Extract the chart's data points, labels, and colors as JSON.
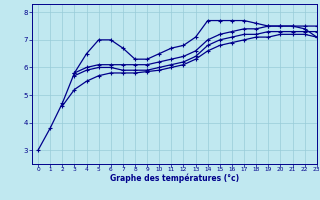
{
  "background_color": "#c0e8f0",
  "grid_color": "#98ccd8",
  "line_color": "#00008b",
  "xlabel": "Graphe des températures (°c)",
  "xlabel_color": "#00008b",
  "xlim": [
    -0.5,
    23
  ],
  "ylim": [
    2.5,
    8.3
  ],
  "yticks": [
    3,
    4,
    5,
    6,
    7,
    8
  ],
  "xticks": [
    0,
    1,
    2,
    3,
    4,
    5,
    6,
    7,
    8,
    9,
    10,
    11,
    12,
    13,
    14,
    15,
    16,
    17,
    18,
    19,
    20,
    21,
    22,
    23
  ],
  "series": [
    {
      "x": [
        0,
        1,
        2,
        3,
        4,
        5,
        6,
        7,
        8,
        9,
        10,
        11,
        12,
        13,
        14,
        15,
        16,
        17,
        18,
        19,
        20,
        21,
        22,
        23
      ],
      "y": [
        3.0,
        3.8,
        4.7,
        5.8,
        6.5,
        7.0,
        7.0,
        6.7,
        6.3,
        6.3,
        6.5,
        6.7,
        6.8,
        7.1,
        7.7,
        7.7,
        7.7,
        7.7,
        7.6,
        7.5,
        7.5,
        7.5,
        7.4,
        7.1
      ]
    },
    {
      "x": [
        3,
        4,
        5,
        6,
        7,
        8,
        9,
        10,
        11,
        12,
        13,
        14,
        15,
        16,
        17,
        18,
        19,
        20,
        21,
        22,
        23
      ],
      "y": [
        5.8,
        6.0,
        6.1,
        6.1,
        6.1,
        6.1,
        6.1,
        6.2,
        6.3,
        6.4,
        6.6,
        7.0,
        7.2,
        7.3,
        7.4,
        7.4,
        7.5,
        7.5,
        7.5,
        7.5,
        7.5
      ]
    },
    {
      "x": [
        3,
        4,
        5,
        6,
        7,
        8,
        9,
        10,
        11,
        12,
        13,
        14,
        15,
        16,
        17,
        18,
        19,
        20,
        21,
        22,
        23
      ],
      "y": [
        5.7,
        5.9,
        6.0,
        6.0,
        5.9,
        5.9,
        5.9,
        6.0,
        6.1,
        6.2,
        6.4,
        6.8,
        7.0,
        7.1,
        7.2,
        7.2,
        7.3,
        7.3,
        7.3,
        7.3,
        7.3
      ]
    },
    {
      "x": [
        2,
        3,
        4,
        5,
        6,
        7,
        8,
        9,
        10,
        11,
        12,
        13,
        14,
        15,
        16,
        17,
        18,
        19,
        20,
        21,
        22,
        23
      ],
      "y": [
        4.6,
        5.2,
        5.5,
        5.7,
        5.8,
        5.8,
        5.8,
        5.85,
        5.9,
        6.0,
        6.1,
        6.3,
        6.6,
        6.8,
        6.9,
        7.0,
        7.1,
        7.1,
        7.2,
        7.2,
        7.2,
        7.1
      ]
    }
  ],
  "marker": "+",
  "markersize": 3.5,
  "linewidth": 0.9
}
